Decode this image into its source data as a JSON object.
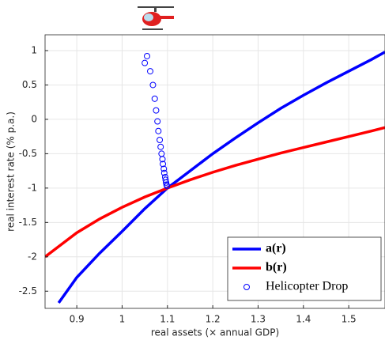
{
  "chart_data": {
    "type": "line",
    "xlabel": "real assets (× annual GDP)",
    "ylabel": "real interest rate (% p.a.)",
    "xlim": [
      0.83,
      1.58
    ],
    "ylim": [
      -2.75,
      1.23
    ],
    "xticks": [
      0.9,
      1,
      1.1,
      1.2,
      1.3,
      1.4,
      1.5
    ],
    "yticks": [
      -2.5,
      -2,
      -1.5,
      -1,
      -0.5,
      0,
      0.5,
      1
    ],
    "grid": true,
    "legend": "lower right",
    "series": [
      {
        "name": "a(r)",
        "color": "#0000ff",
        "style": "line",
        "x": [
          0.86,
          0.9,
          0.95,
          1.0,
          1.05,
          1.1,
          1.15,
          1.2,
          1.25,
          1.3,
          1.35,
          1.4,
          1.45,
          1.5,
          1.55,
          1.58
        ],
        "values": [
          -2.67,
          -2.3,
          -1.95,
          -1.63,
          -1.3,
          -1.0,
          -0.75,
          -0.5,
          -0.27,
          -0.05,
          0.16,
          0.35,
          0.53,
          0.7,
          0.87,
          0.98
        ]
      },
      {
        "name": "b(r)",
        "color": "#ff0000",
        "style": "line",
        "x": [
          0.83,
          0.86,
          0.9,
          0.95,
          1.0,
          1.05,
          1.1,
          1.15,
          1.2,
          1.25,
          1.3,
          1.35,
          1.4,
          1.45,
          1.5,
          1.55,
          1.58
        ],
        "values": [
          -2.0,
          -1.85,
          -1.65,
          -1.45,
          -1.28,
          -1.13,
          -1.0,
          -0.88,
          -0.77,
          -0.67,
          -0.58,
          -0.49,
          -0.41,
          -0.33,
          -0.25,
          -0.17,
          -0.12
        ]
      },
      {
        "name": "Helicopter Drop",
        "color": "#0000ff",
        "style": "markers",
        "x": [
          1.055,
          1.05,
          1.062,
          1.068,
          1.072,
          1.075,
          1.078,
          1.08,
          1.083,
          1.085,
          1.087,
          1.089,
          1.09,
          1.092,
          1.093,
          1.095,
          1.096,
          1.097,
          1.098,
          1.099
        ],
        "values": [
          0.92,
          0.82,
          0.7,
          0.5,
          0.3,
          0.13,
          -0.03,
          -0.17,
          -0.3,
          -0.4,
          -0.5,
          -0.58,
          -0.65,
          -0.72,
          -0.78,
          -0.84,
          -0.88,
          -0.92,
          -0.95,
          -0.97
        ]
      }
    ]
  }
}
